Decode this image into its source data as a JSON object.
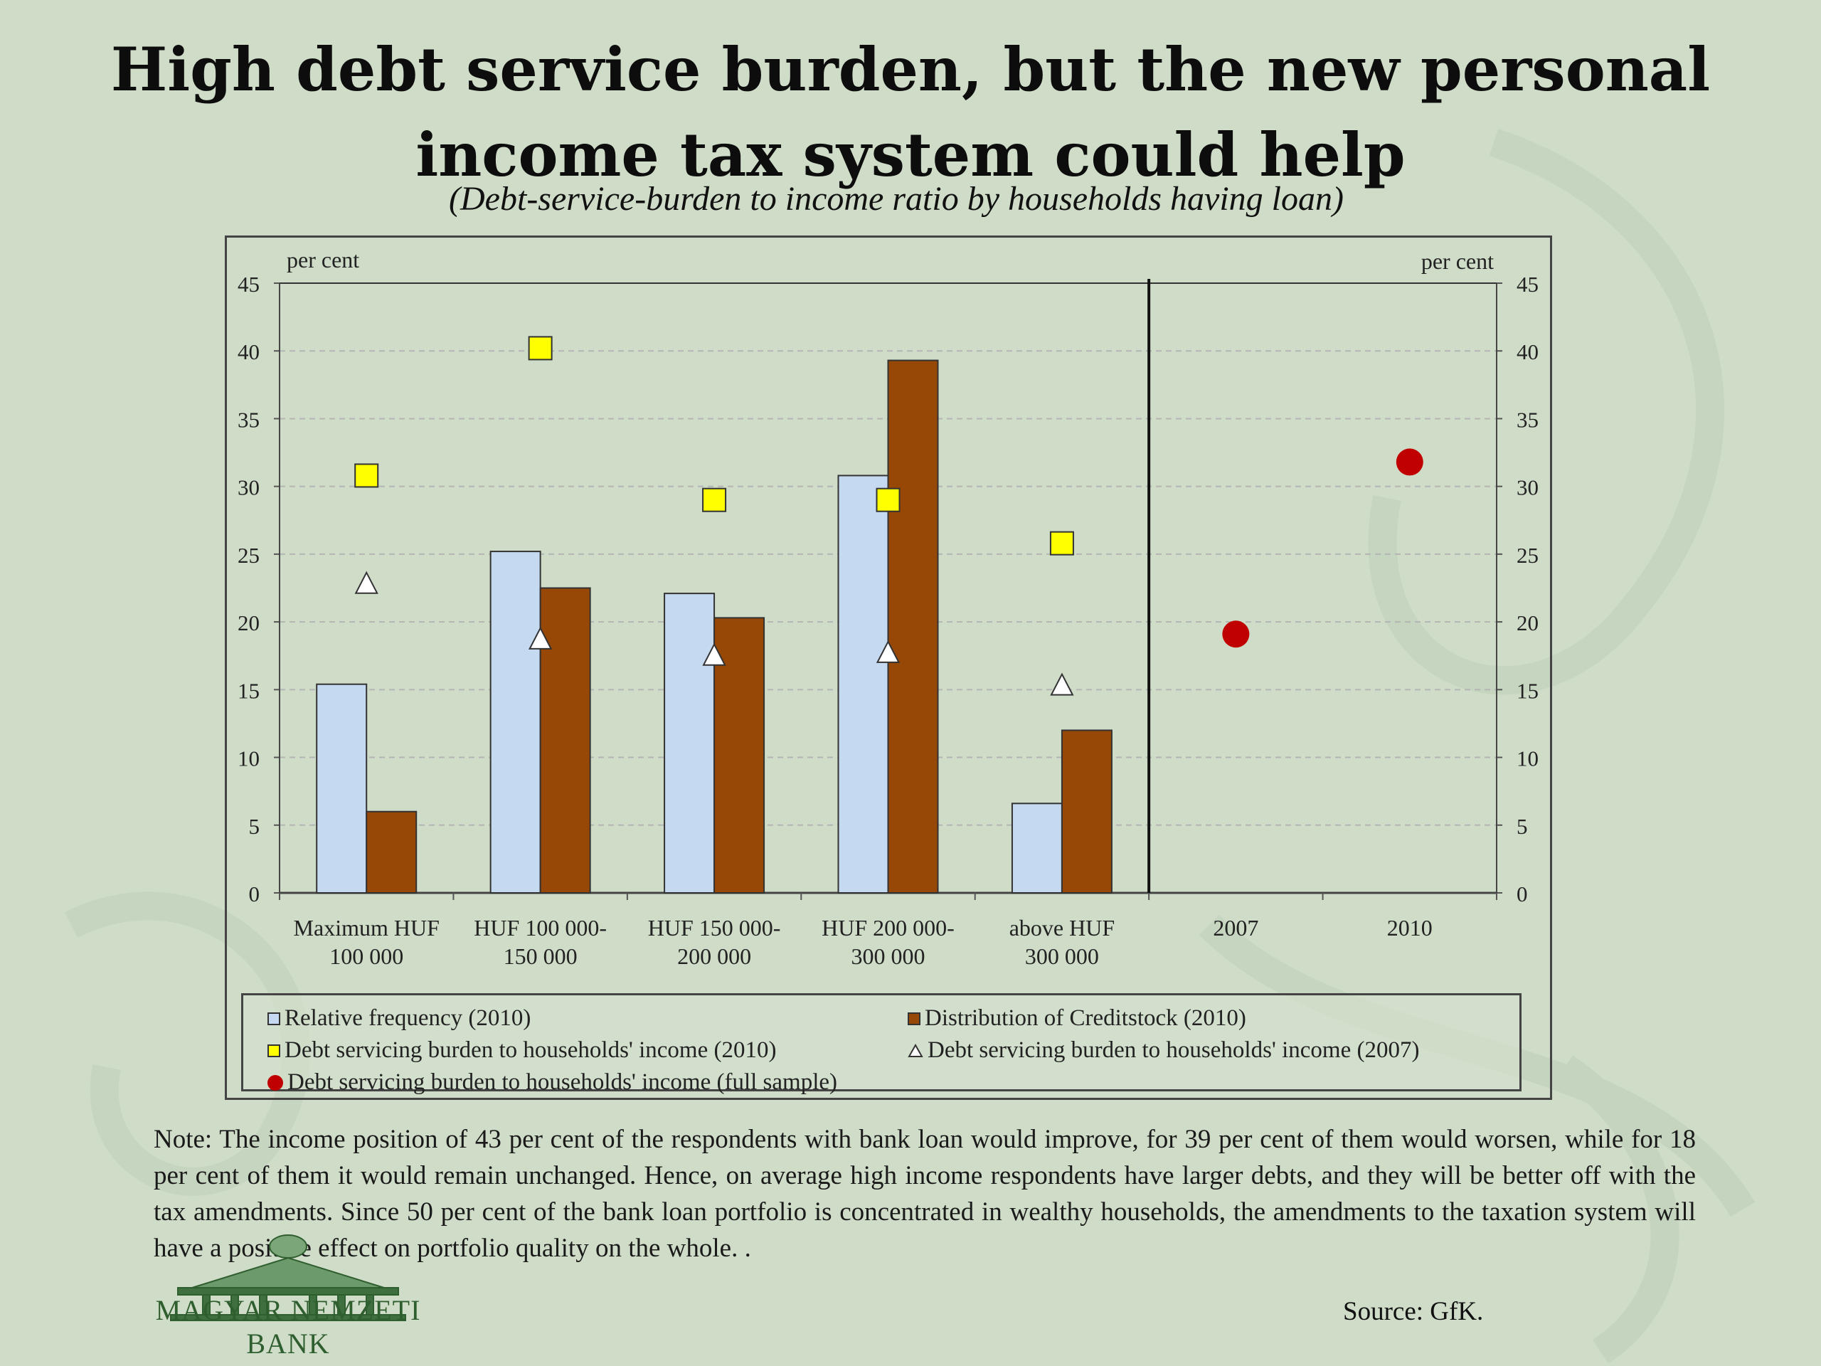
{
  "page": {
    "title": "High debt service burden, but the new personal income tax system could help",
    "subtitle": "(Debt-service-burden to income ratio by households having loan)",
    "note": "Note: The income position of 43 per cent of the respondents with bank loan would improve, for 39 per cent of them would worsen, while for 18 per cent of them it would remain unchanged. Hence, on average high income respondents have larger debts, and they will be better off with the tax amendments. Since 50 per cent of the bank loan portfolio is concentrated in wealthy households, the amendments to the taxation system will have a positive effect on portfolio quality on the whole. .",
    "source": "Source: GfK.",
    "logo_text": "MAGYAR NEMZETI BANK",
    "logo_icon": "bank-building-logo"
  },
  "chart_data": {
    "type": "bar",
    "title": "",
    "ylabel_left": "per cent",
    "ylabel_right": "per cent",
    "ylim": [
      0,
      45
    ],
    "yticks": [
      0,
      5,
      10,
      15,
      20,
      25,
      30,
      35,
      40,
      45
    ],
    "grid": "horizontal-dashed",
    "legend_position": "bottom",
    "categories": [
      [
        "Maximum HUF",
        "100 000"
      ],
      [
        "HUF 100 000-",
        "150 000"
      ],
      [
        "HUF 150 000-",
        "200 000"
      ],
      [
        "HUF 200 000-",
        "300 000"
      ],
      [
        "above HUF",
        "300 000"
      ],
      [
        "2007"
      ],
      [
        "2010"
      ]
    ],
    "series": [
      {
        "name": "Relative frequency (2010)",
        "kind": "bar",
        "color": "#c5d9f1",
        "values": [
          15.4,
          25.2,
          22.1,
          30.8,
          6.6,
          null,
          null
        ]
      },
      {
        "name": "Distribution of Creditstock (2010)",
        "kind": "bar",
        "color": "#974706",
        "values": [
          6.0,
          22.5,
          20.3,
          39.3,
          12.0,
          null,
          null
        ]
      },
      {
        "name": "Debt servicing burden to households' income (2010)",
        "kind": "square",
        "color": "#ffff00",
        "values": [
          30.8,
          40.2,
          29.0,
          29.0,
          25.8,
          null,
          null
        ]
      },
      {
        "name": "Debt servicing burden to households' income (2007)",
        "kind": "triangle",
        "color": "#ffffff",
        "values": [
          22.8,
          18.7,
          17.5,
          17.7,
          15.3,
          null,
          null
        ]
      },
      {
        "name": "Debt servicing burden to households' income (full sample)",
        "kind": "dot",
        "color": "#c00000",
        "values": [
          null,
          null,
          null,
          null,
          null,
          19.1,
          31.8
        ]
      }
    ]
  }
}
